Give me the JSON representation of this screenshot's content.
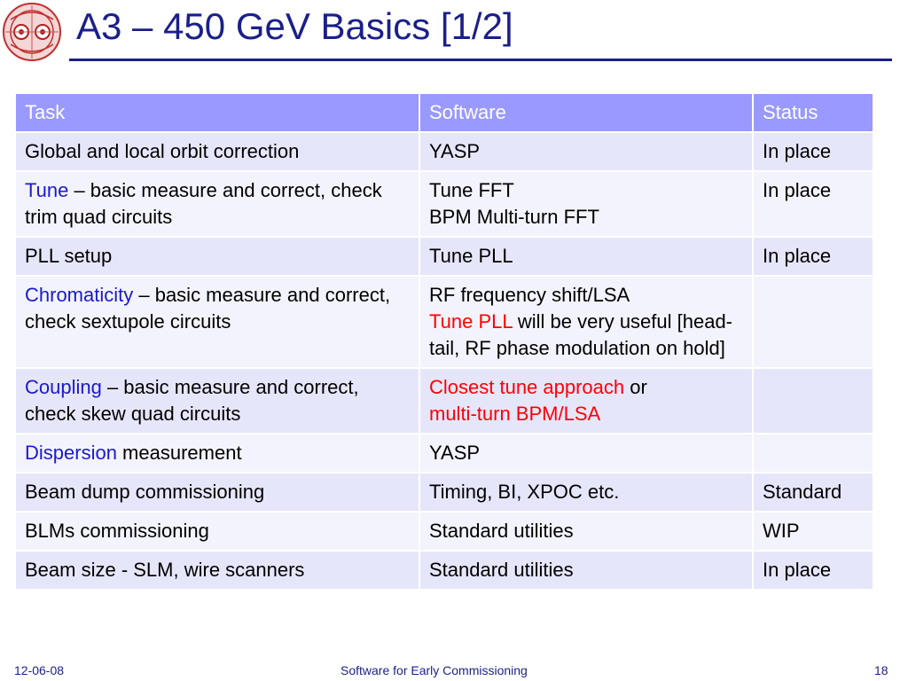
{
  "slide": {
    "title": "A3 – 450 GeV Basics  [1/2]",
    "logo_icon": "lhc-dipole-logo-icon"
  },
  "table": {
    "headers": {
      "task": "Task",
      "software": "Software",
      "status": "Status"
    },
    "rows": [
      {
        "task_plain": "Global and local orbit correction",
        "software": "YASP",
        "status": "In place"
      },
      {
        "task_keyword": "Tune",
        "task_rest": " – basic measure and correct, check trim quad circuits",
        "software_line1": "Tune FFT",
        "software_line2": "BPM Multi-turn FFT",
        "status": "In place"
      },
      {
        "task_plain": "PLL setup",
        "software": "Tune PLL",
        "status": "In place"
      },
      {
        "task_keyword": "Chromaticity",
        "task_rest": " – basic measure and correct, check sextupole circuits",
        "software_line1": "RF frequency shift/LSA",
        "software_red": "Tune PLL",
        "software_rest": " will be very useful [head-tail, RF phase modulation on hold]",
        "status": ""
      },
      {
        "task_keyword": "Coupling",
        "task_rest": " – basic measure and correct, check skew quad circuits",
        "software_red1": "Closest tune approach",
        "software_mid": " or",
        "software_red2": "multi-turn BPM/LSA",
        "status": ""
      },
      {
        "task_keyword": "Dispersion",
        "task_rest": " measurement",
        "software": "YASP",
        "status": ""
      },
      {
        "task_plain": "Beam dump commissioning",
        "software": "Timing, BI, XPOC etc.",
        "status": "Standard"
      },
      {
        "task_plain": "BLMs commissioning",
        "software": "Standard utilities",
        "status": "WIP"
      },
      {
        "task_plain": "Beam size - SLM, wire scanners",
        "software": "Standard utilities",
        "status": "In place"
      }
    ]
  },
  "footer": {
    "date": "12-06-08",
    "center": "Software for Early Commissioning",
    "page": "18"
  },
  "colors": {
    "title": "#1a1f8a",
    "header_bg": "#9999ff",
    "row_odd": "#e6e6fb",
    "row_even": "#f3f3fd",
    "keyword_blue": "#1a1acc",
    "highlight_red": "#ff0000"
  }
}
